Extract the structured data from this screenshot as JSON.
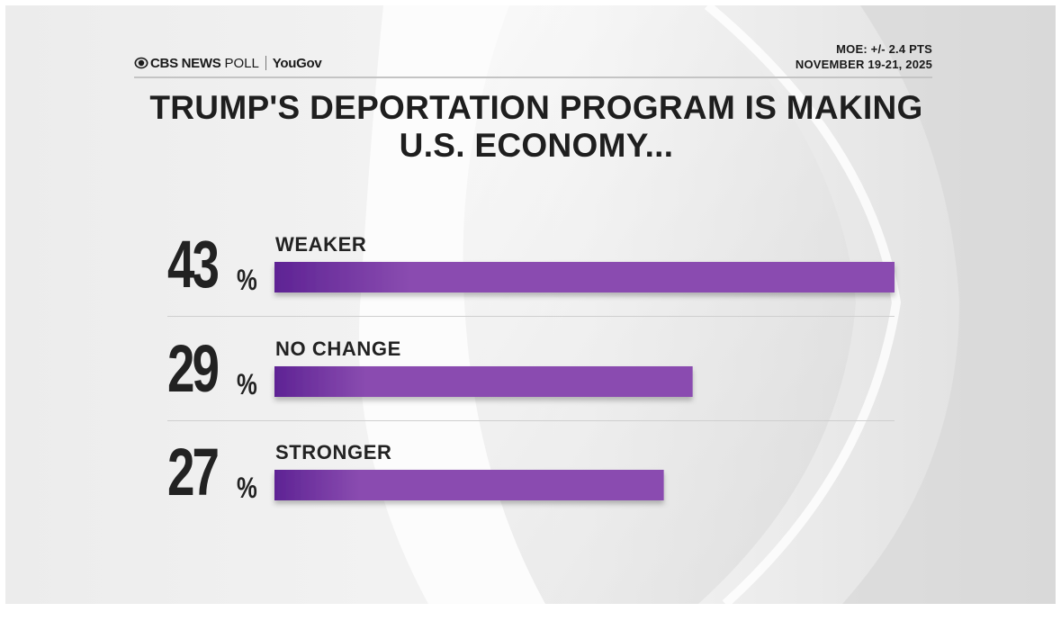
{
  "brand": {
    "network": "CBS NEWS",
    "poll_word": "POLL",
    "partner": "YouGov"
  },
  "meta": {
    "moe": "MOE: +/- 2.4 PTS",
    "dates": "NOVEMBER 19-21, 2025"
  },
  "colors": {
    "bar_dark": "#5e2394",
    "bar_light": "#8a4cb0",
    "text": "#1e1e1e"
  },
  "chart_data": {
    "type": "bar",
    "orientation": "horizontal",
    "title": "TRUMP'S DEPORTATION PROGRAM IS MAKING U.S. ECONOMY...",
    "categories": [
      "WEAKER",
      "NO CHANGE",
      "STRONGER"
    ],
    "values": [
      43,
      29,
      27
    ],
    "value_suffix": "%",
    "xlim": [
      0,
      43
    ],
    "grid": false,
    "legend": "none"
  }
}
